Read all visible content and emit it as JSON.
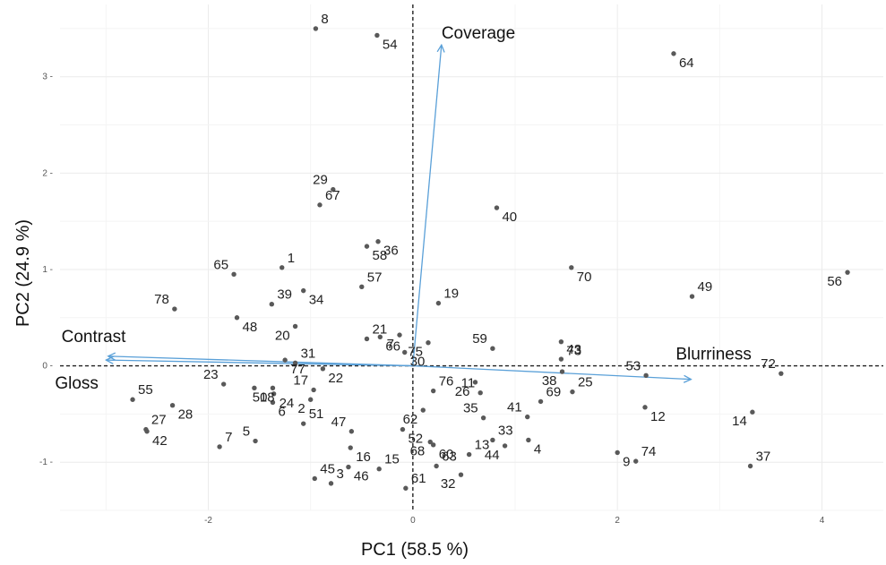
{
  "chart_data": {
    "type": "scatter",
    "title": "",
    "xlabel": "PC1 (58.5 %)",
    "ylabel": "PC2 (24.9 %)",
    "xlim": [
      -3.45,
      4.6
    ],
    "ylim": [
      -1.5,
      3.75
    ],
    "x_ticks": [
      -2,
      0,
      2,
      4
    ],
    "y_ticks": [
      -1,
      0,
      1,
      2,
      3
    ],
    "grid": true,
    "reference_lines": {
      "x": 0,
      "y": 0,
      "style": "dashed"
    },
    "point_color": "#595959",
    "arrow_color": "#5aa0d8",
    "points": [
      {
        "label": "1",
        "x": -1.28,
        "y": 1.02
      },
      {
        "label": "2",
        "x": -1.0,
        "y": -0.35
      },
      {
        "label": "3",
        "x": -0.8,
        "y": -1.22
      },
      {
        "label": "4",
        "x": 1.13,
        "y": -0.77
      },
      {
        "label": "5",
        "x": -1.54,
        "y": -0.78
      },
      {
        "label": "6",
        "x": -1.37,
        "y": -0.38
      },
      {
        "label": "7",
        "x": -1.89,
        "y": -0.84
      },
      {
        "label": "7",
        "x": -0.13,
        "y": 0.32
      },
      {
        "label": "8",
        "x": -0.95,
        "y": 3.5
      },
      {
        "label": "9",
        "x": 2.0,
        "y": -0.9
      },
      {
        "label": "11",
        "x": 0.66,
        "y": -0.28
      },
      {
        "label": "12",
        "x": 2.27,
        "y": -0.43
      },
      {
        "label": "13",
        "x": 0.55,
        "y": -0.92
      },
      {
        "label": "14",
        "x": 3.32,
        "y": -0.48
      },
      {
        "label": "15",
        "x": -0.33,
        "y": -1.07
      },
      {
        "label": "16",
        "x": -0.61,
        "y": -0.85
      },
      {
        "label": "17",
        "x": -0.97,
        "y": -0.25
      },
      {
        "label": "18",
        "x": -1.55,
        "y": -0.23
      },
      {
        "label": "19",
        "x": 0.25,
        "y": 0.65
      },
      {
        "label": "20",
        "x": -1.15,
        "y": 0.41
      },
      {
        "label": "21",
        "x": -0.45,
        "y": 0.28
      },
      {
        "label": "22",
        "x": -0.88,
        "y": -0.03
      },
      {
        "label": "23",
        "x": -1.85,
        "y": -0.19
      },
      {
        "label": "24",
        "x": -1.36,
        "y": -0.29
      },
      {
        "label": "25",
        "x": 1.56,
        "y": -0.27
      },
      {
        "label": "26",
        "x": 0.61,
        "y": -0.17
      },
      {
        "label": "27",
        "x": -2.61,
        "y": -0.66
      },
      {
        "label": "28",
        "x": -2.35,
        "y": -0.41
      },
      {
        "label": "29",
        "x": -0.78,
        "y": 1.83
      },
      {
        "label": "30",
        "x": -0.08,
        "y": 0.14
      },
      {
        "label": "31",
        "x": -1.15,
        "y": 0.03
      },
      {
        "label": "32",
        "x": 0.47,
        "y": -1.13
      },
      {
        "label": "33",
        "x": 0.78,
        "y": -0.77
      },
      {
        "label": "34",
        "x": -1.07,
        "y": 0.78
      },
      {
        "label": "35",
        "x": 0.69,
        "y": -0.54
      },
      {
        "label": "36",
        "x": -0.34,
        "y": 1.29
      },
      {
        "label": "37",
        "x": 3.3,
        "y": -1.04
      },
      {
        "label": "38",
        "x": 1.46,
        "y": -0.06
      },
      {
        "label": "39",
        "x": -1.38,
        "y": 0.64
      },
      {
        "label": "40",
        "x": 0.82,
        "y": 1.64
      },
      {
        "label": "41",
        "x": 1.12,
        "y": -0.53
      },
      {
        "label": "42",
        "x": -2.6,
        "y": -0.68
      },
      {
        "label": "43",
        "x": 1.45,
        "y": 0.07
      },
      {
        "label": "44",
        "x": 0.9,
        "y": -0.83
      },
      {
        "label": "45",
        "x": -0.96,
        "y": -1.17
      },
      {
        "label": "46",
        "x": -0.63,
        "y": -1.05
      },
      {
        "label": "47",
        "x": -0.6,
        "y": -0.68
      },
      {
        "label": "48",
        "x": -1.72,
        "y": 0.5
      },
      {
        "label": "49",
        "x": 2.73,
        "y": 0.72
      },
      {
        "label": "50",
        "x": -1.37,
        "y": -0.23
      },
      {
        "label": "51",
        "x": -1.07,
        "y": -0.6
      },
      {
        "label": "52",
        "x": -0.1,
        "y": -0.66
      },
      {
        "label": "53",
        "x": 2.28,
        "y": -0.1
      },
      {
        "label": "54",
        "x": -0.35,
        "y": 3.43
      },
      {
        "label": "55",
        "x": -2.74,
        "y": -0.35
      },
      {
        "label": "56",
        "x": 4.25,
        "y": 0.97
      },
      {
        "label": "57",
        "x": -0.5,
        "y": 0.82
      },
      {
        "label": "58",
        "x": -0.45,
        "y": 1.24
      },
      {
        "label": "59",
        "x": 0.78,
        "y": 0.18
      },
      {
        "label": "60",
        "x": 0.2,
        "y": -0.82
      },
      {
        "label": "61",
        "x": -0.07,
        "y": -1.27
      },
      {
        "label": "62",
        "x": 0.1,
        "y": -0.46
      },
      {
        "label": "63",
        "x": 0.23,
        "y": -1.04
      },
      {
        "label": "64",
        "x": 2.55,
        "y": 3.24
      },
      {
        "label": "65",
        "x": -1.75,
        "y": 0.95
      },
      {
        "label": "66",
        "x": -0.32,
        "y": 0.3
      },
      {
        "label": "67",
        "x": -0.91,
        "y": 1.67
      },
      {
        "label": "68",
        "x": 0.17,
        "y": -0.79
      },
      {
        "label": "69",
        "x": 1.25,
        "y": -0.37
      },
      {
        "label": "70",
        "x": 1.55,
        "y": 1.02
      },
      {
        "label": "72",
        "x": 3.6,
        "y": -0.08
      },
      {
        "label": "73",
        "x": 1.45,
        "y": 0.25
      },
      {
        "label": "74",
        "x": 2.18,
        "y": -0.99
      },
      {
        "label": "75",
        "x": 0.15,
        "y": 0.24
      },
      {
        "label": "76",
        "x": 0.2,
        "y": -0.26
      },
      {
        "label": "77",
        "x": -1.25,
        "y": 0.06
      },
      {
        "label": "78",
        "x": -2.33,
        "y": 0.59
      }
    ],
    "loadings": [
      {
        "name": "Coverage",
        "x": 0.28,
        "y": 3.33
      },
      {
        "name": "Contrast",
        "x": -2.98,
        "y": 0.1
      },
      {
        "name": "Gloss",
        "x": -3.0,
        "y": 0.06
      },
      {
        "name": "Blurriness",
        "x": 2.72,
        "y": -0.14
      }
    ]
  }
}
